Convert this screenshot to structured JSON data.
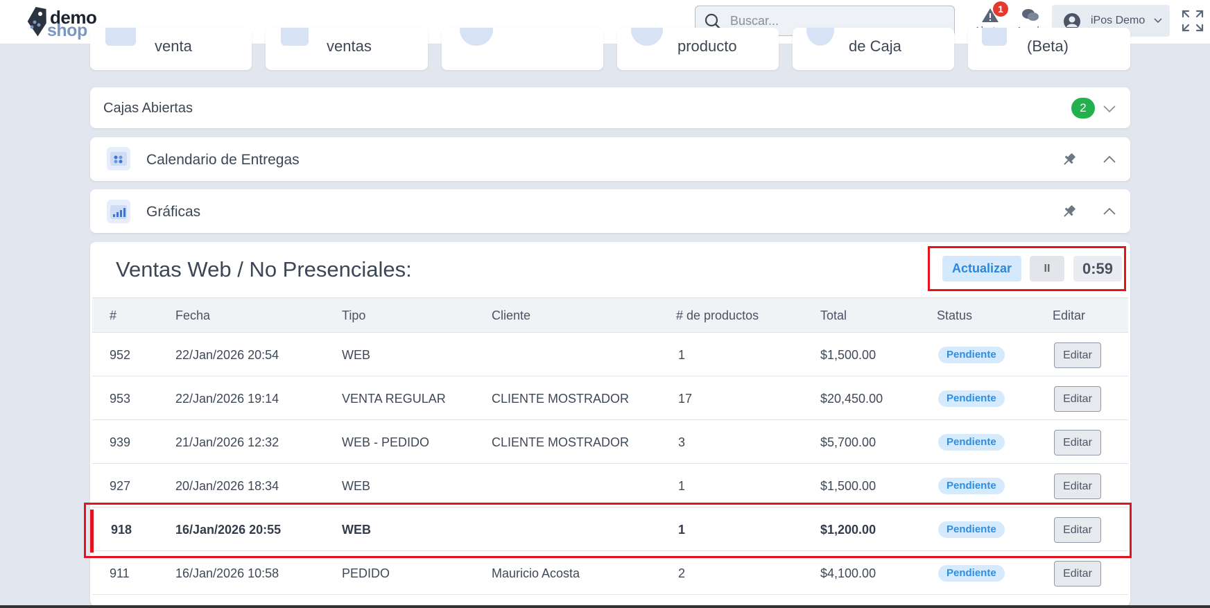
{
  "brand": {
    "line1": "demo",
    "line2": "shop"
  },
  "search": {
    "placeholder": "Buscar..."
  },
  "topbar": {
    "alerts_label": "Alertas",
    "alerts_count": "1",
    "help_label": "Ayuda",
    "user_name": "iPos Demo"
  },
  "shortcuts": [
    {
      "label": "venta"
    },
    {
      "label": "ventas"
    },
    {
      "label": ""
    },
    {
      "label": "producto"
    },
    {
      "label": "de Caja"
    },
    {
      "label": "(Beta)"
    }
  ],
  "panels": {
    "cajas": {
      "title": "Cajas Abiertas",
      "count": "2"
    },
    "calendario": {
      "title": "Calendario de Entregas"
    },
    "graficas": {
      "title": "Gráficas"
    }
  },
  "ventas": {
    "title": "Ventas Web / No Presenciales:",
    "refresh_label": "Actualizar",
    "pause_label": "II",
    "timer": "0:59",
    "columns": [
      "#",
      "Fecha",
      "Tipo",
      "Cliente",
      "# de productos",
      "Total",
      "Status",
      "Editar"
    ],
    "rows": [
      {
        "id": "952",
        "fecha": "22/Jan/2026 20:54",
        "tipo": "WEB",
        "cliente": "",
        "productos": "1",
        "total": "$1,500.00",
        "status": "Pendiente",
        "edit": "Editar"
      },
      {
        "id": "953",
        "fecha": "22/Jan/2026 19:14",
        "tipo": "VENTA REGULAR",
        "cliente": "CLIENTE MOSTRADOR",
        "productos": "17",
        "total": "$20,450.00",
        "status": "Pendiente",
        "edit": "Editar"
      },
      {
        "id": "939",
        "fecha": "21/Jan/2026 12:32",
        "tipo": "WEB - PEDIDO",
        "cliente": "CLIENTE MOSTRADOR",
        "productos": "3",
        "total": "$5,700.00",
        "status": "Pendiente",
        "edit": "Editar"
      },
      {
        "id": "927",
        "fecha": "20/Jan/2026 18:34",
        "tipo": "WEB",
        "cliente": "",
        "productos": "1",
        "total": "$1,500.00",
        "status": "Pendiente",
        "edit": "Editar"
      },
      {
        "id": "918",
        "fecha": "16/Jan/2026 20:55",
        "tipo": "WEB",
        "cliente": "",
        "productos": "1",
        "total": "$1,200.00",
        "status": "Pendiente",
        "edit": "Editar"
      },
      {
        "id": "911",
        "fecha": "16/Jan/2026 10:58",
        "tipo": "PEDIDO",
        "cliente": "Mauricio Acosta",
        "productos": "2",
        "total": "$4,100.00",
        "status": "Pendiente",
        "edit": "Editar"
      }
    ]
  },
  "colors": {
    "accent": "#2b87d8",
    "highlight": "#e3141c",
    "success": "#22b14c"
  }
}
